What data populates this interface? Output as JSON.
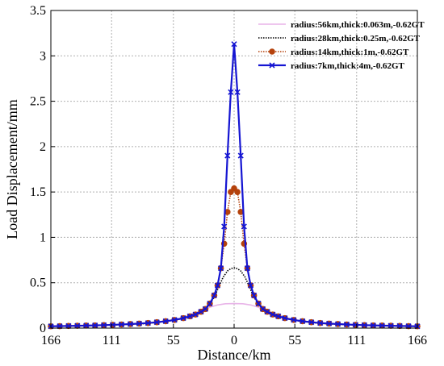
{
  "chart_data": {
    "type": "line",
    "xlabel": "Distance/km",
    "ylabel": "Load Displacement/mm",
    "xlim": [
      -166,
      166
    ],
    "ylim": [
      0,
      3.5
    ],
    "x_ticks": [
      -166,
      -111,
      -55,
      0,
      55,
      111,
      166
    ],
    "x_tick_labels": [
      "166",
      "111",
      "55",
      "0",
      "55",
      "111",
      "166"
    ],
    "y_ticks": [
      0,
      0.5,
      1,
      1.5,
      2,
      2.5,
      3,
      3.5
    ],
    "y_tick_labels": [
      "0",
      "0.5",
      "1",
      "1.5",
      "2",
      "2.5",
      "3",
      "3.5"
    ],
    "grid": true,
    "legend_position": "top-right",
    "series": [
      {
        "name": "radius:56km,thick:0.063m,-0.62GT",
        "color": "#e8b4e8",
        "style": "solid",
        "marker": "none",
        "x": [
          -166,
          -140,
          -110,
          -80,
          -60,
          -45,
          -35,
          -28,
          -22,
          -15,
          -8,
          0,
          8,
          15,
          22,
          28,
          35,
          45,
          60,
          80,
          110,
          140,
          166
        ],
        "y": [
          0.02,
          0.025,
          0.035,
          0.05,
          0.075,
          0.11,
          0.15,
          0.19,
          0.23,
          0.255,
          0.268,
          0.27,
          0.268,
          0.255,
          0.23,
          0.19,
          0.15,
          0.11,
          0.075,
          0.05,
          0.035,
          0.025,
          0.02
        ]
      },
      {
        "name": "radius:28km,thick:0.25m,-0.62GT",
        "color": "#000000",
        "style": "dotted",
        "marker": "none",
        "x": [
          -166,
          -140,
          -110,
          -80,
          -60,
          -45,
          -35,
          -28,
          -22,
          -18,
          -14,
          -10,
          -6,
          -3,
          0,
          3,
          6,
          10,
          14,
          18,
          22,
          28,
          35,
          45,
          60,
          80,
          110,
          140,
          166
        ],
        "y": [
          0.02,
          0.025,
          0.035,
          0.05,
          0.075,
          0.11,
          0.15,
          0.2,
          0.27,
          0.34,
          0.45,
          0.56,
          0.63,
          0.655,
          0.665,
          0.655,
          0.63,
          0.56,
          0.45,
          0.34,
          0.27,
          0.2,
          0.15,
          0.11,
          0.075,
          0.05,
          0.035,
          0.025,
          0.02
        ]
      },
      {
        "name": "radius:14km,thick:1m,-0.62GT",
        "color": "#b5420c",
        "style": "dotted",
        "marker": "circle",
        "x": [
          -166,
          -158,
          -150,
          -142,
          -134,
          -126,
          -118,
          -110,
          -102,
          -94,
          -86,
          -78,
          -70,
          -62,
          -54,
          -46,
          -40,
          -35,
          -30,
          -26,
          -22,
          -18,
          -15,
          -12,
          -9,
          -6,
          -3,
          0,
          3,
          6,
          9,
          12,
          15,
          18,
          22,
          26,
          30,
          35,
          40,
          46,
          54,
          62,
          70,
          78,
          86,
          94,
          102,
          110,
          118,
          126,
          134,
          142,
          150,
          158,
          166
        ],
        "y": [
          0.02,
          0.022,
          0.024,
          0.026,
          0.028,
          0.03,
          0.033,
          0.036,
          0.04,
          0.045,
          0.05,
          0.056,
          0.065,
          0.076,
          0.09,
          0.11,
          0.13,
          0.15,
          0.18,
          0.21,
          0.27,
          0.36,
          0.47,
          0.66,
          0.93,
          1.28,
          1.5,
          1.54,
          1.5,
          1.28,
          0.93,
          0.66,
          0.47,
          0.36,
          0.27,
          0.21,
          0.18,
          0.15,
          0.13,
          0.11,
          0.09,
          0.076,
          0.065,
          0.056,
          0.05,
          0.045,
          0.04,
          0.036,
          0.033,
          0.03,
          0.028,
          0.026,
          0.024,
          0.022,
          0.02
        ]
      },
      {
        "name": "radius:7km,thick:4m,-0.62GT",
        "color": "#1515d2",
        "style": "solid",
        "marker": "x",
        "x": [
          -166,
          -158,
          -150,
          -142,
          -134,
          -126,
          -118,
          -110,
          -102,
          -94,
          -86,
          -78,
          -70,
          -62,
          -54,
          -46,
          -40,
          -35,
          -30,
          -26,
          -22,
          -18,
          -15,
          -12,
          -9,
          -6,
          -3,
          0,
          3,
          6,
          9,
          12,
          15,
          18,
          22,
          26,
          30,
          35,
          40,
          46,
          54,
          62,
          70,
          78,
          86,
          94,
          102,
          110,
          118,
          126,
          134,
          142,
          150,
          158,
          166
        ],
        "y": [
          0.02,
          0.022,
          0.024,
          0.026,
          0.028,
          0.03,
          0.033,
          0.036,
          0.04,
          0.045,
          0.05,
          0.056,
          0.065,
          0.076,
          0.09,
          0.11,
          0.13,
          0.15,
          0.18,
          0.21,
          0.27,
          0.36,
          0.47,
          0.66,
          1.12,
          1.9,
          2.6,
          3.13,
          2.6,
          1.9,
          1.12,
          0.66,
          0.47,
          0.36,
          0.27,
          0.21,
          0.18,
          0.15,
          0.13,
          0.11,
          0.09,
          0.076,
          0.065,
          0.056,
          0.05,
          0.045,
          0.04,
          0.036,
          0.033,
          0.03,
          0.028,
          0.026,
          0.024,
          0.022,
          0.02
        ]
      }
    ]
  }
}
